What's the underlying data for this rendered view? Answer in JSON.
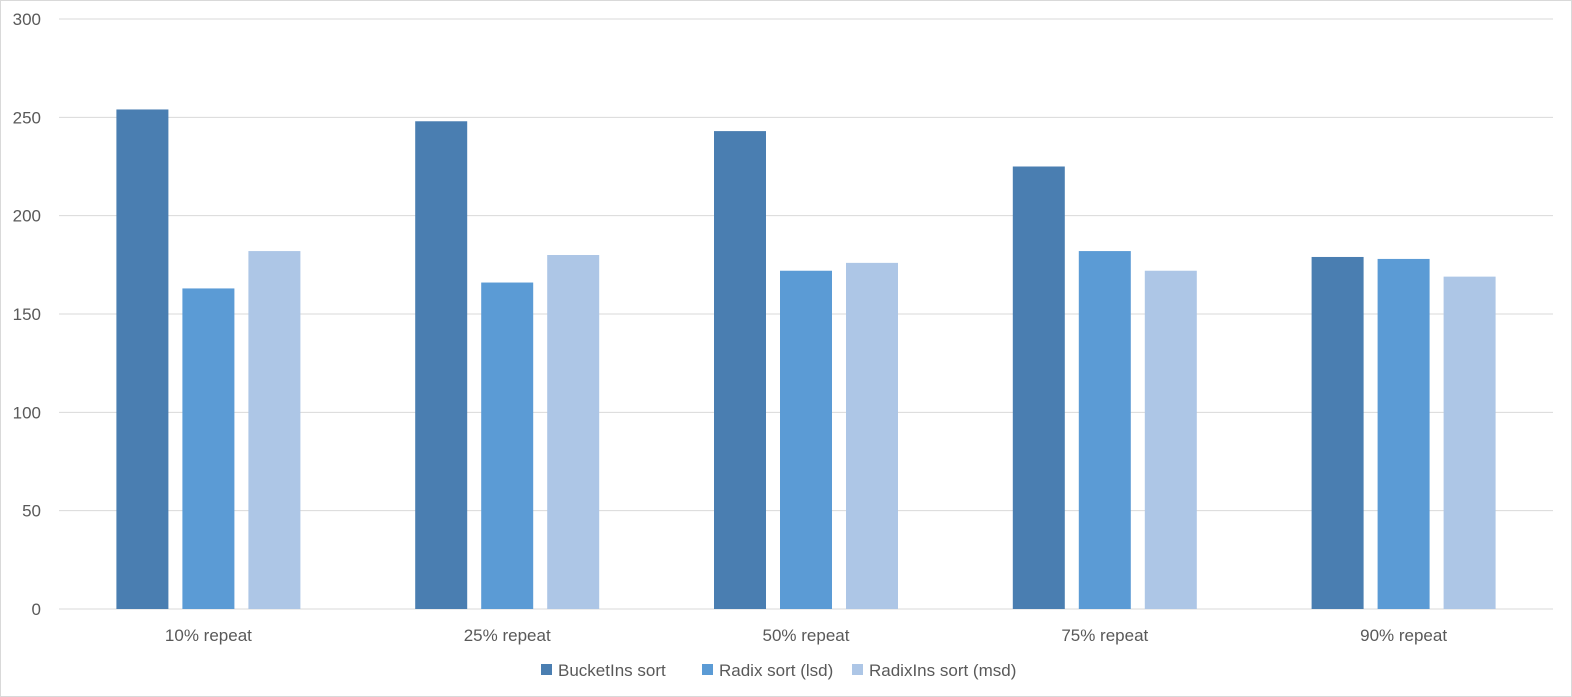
{
  "chart_data": {
    "type": "bar",
    "title": "",
    "xlabel": "",
    "ylabel": "",
    "categories": [
      "10% repeat",
      "25% repeat",
      "50% repeat",
      "75% repeat",
      "90% repeat"
    ],
    "series": [
      {
        "name": "BucketIns sort",
        "color": "#4a7eb1",
        "values": [
          254,
          248,
          243,
          225,
          179
        ]
      },
      {
        "name": "Radix sort (lsd)",
        "color": "#5b9bd5",
        "values": [
          163,
          166,
          172,
          182,
          178
        ]
      },
      {
        "name": "RadixIns sort (msd)",
        "color": "#adc6e6",
        "values": [
          182,
          180,
          176,
          172,
          169
        ]
      }
    ],
    "ylim": [
      0,
      300
    ],
    "yticks": [
      "0",
      "50",
      "100",
      "150",
      "200",
      "250",
      "300"
    ],
    "grid": true,
    "legend_position": "bottom-center"
  }
}
